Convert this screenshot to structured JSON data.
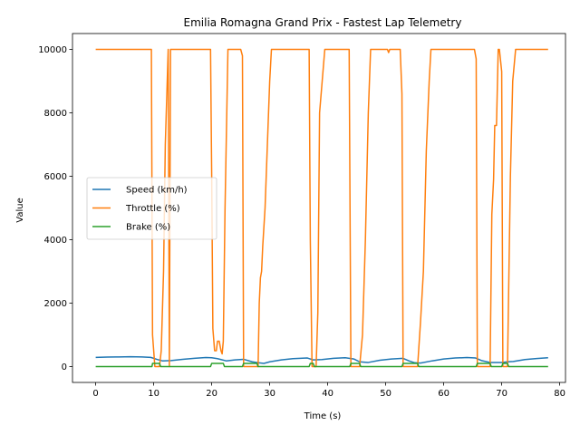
{
  "chart_data": {
    "type": "line",
    "title": "Emilia Romagna Grand Prix - Fastest Lap Telemetry",
    "xlabel": "Time (s)",
    "ylabel": "Value",
    "xlim": [
      -4,
      81
    ],
    "ylim": [
      -500,
      10500
    ],
    "xticks": [
      0,
      10,
      20,
      30,
      40,
      50,
      60,
      70,
      80
    ],
    "yticks": [
      0,
      2000,
      4000,
      6000,
      8000,
      10000
    ],
    "grid": false,
    "legend_position": "center-left",
    "series": [
      {
        "name": "Speed (km/h)",
        "color": "#1f77b4",
        "points": [
          [
            0,
            290
          ],
          [
            2,
            300
          ],
          [
            4,
            305
          ],
          [
            6,
            310
          ],
          [
            8,
            305
          ],
          [
            9.5,
            290
          ],
          [
            10.5,
            230
          ],
          [
            11.5,
            180
          ],
          [
            13,
            190
          ],
          [
            15,
            230
          ],
          [
            17,
            260
          ],
          [
            19,
            285
          ],
          [
            20,
            280
          ],
          [
            21,
            250
          ],
          [
            22.5,
            180
          ],
          [
            24,
            210
          ],
          [
            25.5,
            230
          ],
          [
            27,
            150
          ],
          [
            28,
            120
          ],
          [
            29,
            100
          ],
          [
            30,
            150
          ],
          [
            32,
            210
          ],
          [
            34,
            250
          ],
          [
            36.5,
            270
          ],
          [
            37.5,
            210
          ],
          [
            39,
            220
          ],
          [
            41,
            260
          ],
          [
            43,
            280
          ],
          [
            44.5,
            240
          ],
          [
            45.5,
            150
          ],
          [
            47,
            130
          ],
          [
            49,
            200
          ],
          [
            51,
            240
          ],
          [
            53,
            260
          ],
          [
            54,
            180
          ],
          [
            55,
            120
          ],
          [
            56,
            110
          ],
          [
            58,
            180
          ],
          [
            60,
            240
          ],
          [
            62,
            270
          ],
          [
            64,
            285
          ],
          [
            65.5,
            270
          ],
          [
            66.5,
            190
          ],
          [
            68,
            130
          ],
          [
            70,
            130
          ],
          [
            71,
            150
          ],
          [
            72,
            160
          ],
          [
            74,
            220
          ],
          [
            76,
            255
          ],
          [
            78,
            280
          ]
        ]
      },
      {
        "name": "Throttle (%)",
        "color": "#ff7f0e",
        "points": [
          [
            0,
            10000
          ],
          [
            9.6,
            10000
          ],
          [
            9.8,
            1000
          ],
          [
            10.2,
            0
          ],
          [
            11,
            0
          ],
          [
            11.3,
            500
          ],
          [
            11.7,
            3000
          ],
          [
            12,
            7000
          ],
          [
            12.5,
            10000
          ],
          [
            12.7,
            0
          ],
          [
            12.9,
            10000
          ],
          [
            19.8,
            10000
          ],
          [
            20,
            6000
          ],
          [
            20.2,
            1200
          ],
          [
            20.5,
            500
          ],
          [
            20.8,
            500
          ],
          [
            21,
            800
          ],
          [
            21.3,
            800
          ],
          [
            21.6,
            500
          ],
          [
            21.8,
            400
          ],
          [
            22,
            800
          ],
          [
            22.3,
            5000
          ],
          [
            22.6,
            8000
          ],
          [
            22.8,
            10000
          ],
          [
            25,
            10000
          ],
          [
            25.3,
            9800
          ],
          [
            25.5,
            0
          ],
          [
            28,
            0
          ],
          [
            28.2,
            2000
          ],
          [
            28.4,
            2800
          ],
          [
            28.6,
            3000
          ],
          [
            28.8,
            3800
          ],
          [
            29.2,
            5000
          ],
          [
            29.6,
            7000
          ],
          [
            30,
            9000
          ],
          [
            30.3,
            10000
          ],
          [
            36.8,
            10000
          ],
          [
            37,
            4000
          ],
          [
            37.3,
            0
          ],
          [
            38,
            0
          ],
          [
            38.3,
            1700
          ],
          [
            38.6,
            8000
          ],
          [
            39.5,
            10000
          ],
          [
            43.7,
            10000
          ],
          [
            44,
            0
          ],
          [
            45.5,
            0
          ],
          [
            46,
            1000
          ],
          [
            46.5,
            4000
          ],
          [
            47,
            8000
          ],
          [
            47.4,
            10000
          ],
          [
            50.3,
            10000
          ],
          [
            50.5,
            9900
          ],
          [
            50.7,
            10000
          ],
          [
            52.5,
            10000
          ],
          [
            52.8,
            8600
          ],
          [
            53,
            0
          ],
          [
            55.5,
            0
          ],
          [
            56,
            1400
          ],
          [
            56.5,
            3000
          ],
          [
            57,
            6800
          ],
          [
            57.5,
            9000
          ],
          [
            57.8,
            10000
          ],
          [
            65.3,
            10000
          ],
          [
            65.6,
            9700
          ],
          [
            65.8,
            0
          ],
          [
            68,
            0
          ],
          [
            68.3,
            4800
          ],
          [
            68.6,
            5900
          ],
          [
            68.8,
            7600
          ],
          [
            69.1,
            7600
          ],
          [
            69.4,
            10000
          ],
          [
            69.6,
            10000
          ],
          [
            70,
            9300
          ],
          [
            70.2,
            0
          ],
          [
            71,
            0
          ],
          [
            71.5,
            6000
          ],
          [
            71.9,
            9000
          ],
          [
            72.4,
            10000
          ],
          [
            78,
            10000
          ]
        ]
      },
      {
        "name": "Brake (%)",
        "color": "#2ca02c",
        "points": [
          [
            0,
            0
          ],
          [
            9.7,
            0
          ],
          [
            9.8,
            100
          ],
          [
            11,
            100
          ],
          [
            11.2,
            0
          ],
          [
            19.8,
            0
          ],
          [
            20,
            100
          ],
          [
            22,
            100
          ],
          [
            22.2,
            0
          ],
          [
            25.3,
            0
          ],
          [
            25.5,
            100
          ],
          [
            27.8,
            100
          ],
          [
            28,
            0
          ],
          [
            36.8,
            0
          ],
          [
            37,
            100
          ],
          [
            37.5,
            100
          ],
          [
            37.7,
            0
          ],
          [
            43.8,
            0
          ],
          [
            44,
            100
          ],
          [
            45.5,
            100
          ],
          [
            45.7,
            0
          ],
          [
            52.8,
            0
          ],
          [
            53,
            100
          ],
          [
            55.5,
            100
          ],
          [
            55.7,
            0
          ],
          [
            65.6,
            0
          ],
          [
            65.8,
            100
          ],
          [
            68,
            100
          ],
          [
            68.2,
            0
          ],
          [
            70,
            0
          ],
          [
            70.2,
            100
          ],
          [
            71,
            100
          ],
          [
            71.2,
            0
          ],
          [
            78,
            0
          ]
        ]
      }
    ]
  }
}
